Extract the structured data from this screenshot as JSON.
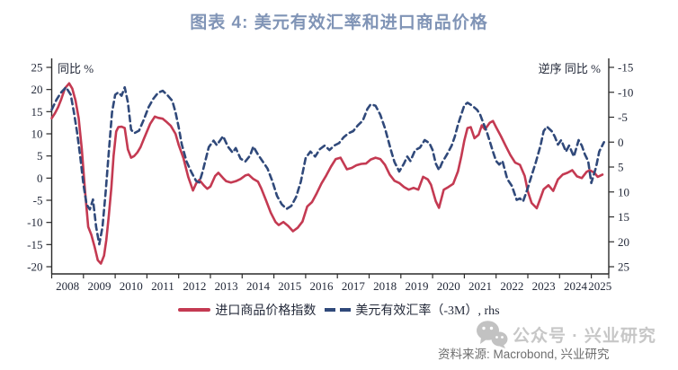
{
  "title": "图表 4: 美元有效汇率和进口商品价格",
  "legend": {
    "item1": "进口商品价格指数",
    "item2": "美元有效汇率（-3M）, rhs"
  },
  "footer": {
    "watermark": "公众号 · 兴业研究",
    "source": "资料来源: Macrobond, 兴业研究"
  },
  "colors": {
    "red_line": "#C43A52",
    "navy_dashed": "#30497A",
    "title": "#8094B6",
    "axis_text": "#232939",
    "axis_line": "#2A2A2A",
    "source_text": "#6E6E6E",
    "watermark": "#C7C7C7"
  },
  "chart_data": {
    "type": "line",
    "title": "图表 4: 美元有效汇率和进口商品价格",
    "x_axis": {
      "years": [
        2008,
        2009,
        2010,
        2011,
        2012,
        2013,
        2014,
        2015,
        2016,
        2017,
        2018,
        2019,
        2020,
        2021,
        2022,
        2023,
        2024,
        2025
      ],
      "range": [
        2008,
        2025.58
      ]
    },
    "left_axis": {
      "label": "同比 %",
      "ticks": [
        25,
        20,
        15,
        10,
        5,
        0,
        -5,
        -10,
        -15,
        -20
      ],
      "range": [
        -20,
        25
      ]
    },
    "right_axis": {
      "label": "逆序 同比 %",
      "ticks": [
        -15,
        -10,
        -5,
        0,
        5,
        10,
        15,
        20,
        25
      ],
      "range": [
        -15,
        25
      ],
      "inverted": true
    },
    "grid": false,
    "legend_position": "bottom",
    "series": [
      {
        "name": "进口商品价格指数",
        "axis": "left",
        "style": "solid",
        "color": "#C43A52",
        "points": [
          [
            2008.0,
            13.5
          ],
          [
            2008.1,
            14.6
          ],
          [
            2008.2,
            16
          ],
          [
            2008.3,
            17.8
          ],
          [
            2008.42,
            20.3
          ],
          [
            2008.55,
            21.4
          ],
          [
            2008.65,
            20.2
          ],
          [
            2008.75,
            17.5
          ],
          [
            2008.85,
            13.5
          ],
          [
            2008.95,
            6.5
          ],
          [
            2009.05,
            -3
          ],
          [
            2009.15,
            -11
          ],
          [
            2009.25,
            -12.8
          ],
          [
            2009.35,
            -15.5
          ],
          [
            2009.45,
            -18.5
          ],
          [
            2009.55,
            -19.3
          ],
          [
            2009.65,
            -17.5
          ],
          [
            2009.72,
            -14
          ],
          [
            2009.8,
            -8.5
          ],
          [
            2009.88,
            -2
          ],
          [
            2009.95,
            5
          ],
          [
            2010.03,
            10.5
          ],
          [
            2010.1,
            11.5
          ],
          [
            2010.2,
            11.6
          ],
          [
            2010.3,
            11.3
          ],
          [
            2010.4,
            6.5
          ],
          [
            2010.5,
            4.6
          ],
          [
            2010.6,
            5
          ],
          [
            2010.7,
            5.8
          ],
          [
            2010.8,
            7
          ],
          [
            2010.9,
            8.8
          ],
          [
            2011.0,
            10.5
          ],
          [
            2011.1,
            12.2
          ],
          [
            2011.25,
            13.9
          ],
          [
            2011.35,
            13.6
          ],
          [
            2011.5,
            13.4
          ],
          [
            2011.6,
            12.8
          ],
          [
            2011.75,
            11.8
          ],
          [
            2011.9,
            10
          ],
          [
            2012.0,
            7.5
          ],
          [
            2012.15,
            4.5
          ],
          [
            2012.3,
            0.3
          ],
          [
            2012.45,
            -2.8
          ],
          [
            2012.55,
            -1.2
          ],
          [
            2012.65,
            -0.4
          ],
          [
            2012.8,
            -1.7
          ],
          [
            2012.9,
            -2.4
          ],
          [
            2013.0,
            -1.9
          ],
          [
            2013.15,
            0.5
          ],
          [
            2013.25,
            1.2
          ],
          [
            2013.4,
            0
          ],
          [
            2013.5,
            -0.7
          ],
          [
            2013.65,
            -1
          ],
          [
            2013.8,
            -0.7
          ],
          [
            2013.95,
            -0.2
          ],
          [
            2014.1,
            0.6
          ],
          [
            2014.2,
            0.8
          ],
          [
            2014.35,
            -0.2
          ],
          [
            2014.5,
            -0.8
          ],
          [
            2014.6,
            -2.3
          ],
          [
            2014.75,
            -5
          ],
          [
            2014.9,
            -7.8
          ],
          [
            2015.05,
            -9.9
          ],
          [
            2015.15,
            -10.6
          ],
          [
            2015.3,
            -9.9
          ],
          [
            2015.45,
            -10.8
          ],
          [
            2015.6,
            -12
          ],
          [
            2015.75,
            -11.2
          ],
          [
            2015.9,
            -9.8
          ],
          [
            2016.05,
            -6.4
          ],
          [
            2016.2,
            -5.4
          ],
          [
            2016.35,
            -3.4
          ],
          [
            2016.5,
            -1.2
          ],
          [
            2016.65,
            0.6
          ],
          [
            2016.8,
            2.6
          ],
          [
            2016.95,
            4.3
          ],
          [
            2017.1,
            4.6
          ],
          [
            2017.3,
            2
          ],
          [
            2017.45,
            2.3
          ],
          [
            2017.6,
            2.9
          ],
          [
            2017.75,
            3.2
          ],
          [
            2017.9,
            3.3
          ],
          [
            2018.05,
            4.2
          ],
          [
            2018.2,
            4.6
          ],
          [
            2018.35,
            4.3
          ],
          [
            2018.5,
            3
          ],
          [
            2018.65,
            0.8
          ],
          [
            2018.8,
            -0.6
          ],
          [
            2018.95,
            -1.1
          ],
          [
            2019.1,
            -2
          ],
          [
            2019.25,
            -2.6
          ],
          [
            2019.4,
            -2.2
          ],
          [
            2019.55,
            -2.6
          ],
          [
            2019.7,
            0.3
          ],
          [
            2019.85,
            -0.3
          ],
          [
            2019.95,
            -1.5
          ],
          [
            2020.1,
            -5.2
          ],
          [
            2020.2,
            -6.7
          ],
          [
            2020.35,
            -2.6
          ],
          [
            2020.5,
            -2
          ],
          [
            2020.65,
            -1.3
          ],
          [
            2020.8,
            1.5
          ],
          [
            2020.9,
            4.8
          ],
          [
            2021.0,
            8.5
          ],
          [
            2021.1,
            11.3
          ],
          [
            2021.2,
            11.5
          ],
          [
            2021.32,
            9
          ],
          [
            2021.45,
            9.8
          ],
          [
            2021.55,
            11.9
          ],
          [
            2021.65,
            11
          ],
          [
            2021.8,
            12.5
          ],
          [
            2021.9,
            12.9
          ],
          [
            2022.0,
            11.5
          ],
          [
            2022.15,
            9.5
          ],
          [
            2022.3,
            7.3
          ],
          [
            2022.45,
            5.2
          ],
          [
            2022.6,
            3.5
          ],
          [
            2022.75,
            3
          ],
          [
            2022.9,
            0.5
          ],
          [
            2023.0,
            -3
          ],
          [
            2023.12,
            -5.6
          ],
          [
            2023.28,
            -6.8
          ],
          [
            2023.4,
            -4.5
          ],
          [
            2023.5,
            -2.5
          ],
          [
            2023.65,
            -1.6
          ],
          [
            2023.8,
            -2.9
          ],
          [
            2023.95,
            -0.3
          ],
          [
            2024.1,
            0.8
          ],
          [
            2024.25,
            1.2
          ],
          [
            2024.4,
            1.8
          ],
          [
            2024.55,
            0.4
          ],
          [
            2024.7,
            0
          ],
          [
            2024.85,
            1.4
          ],
          [
            2024.95,
            1.8
          ],
          [
            2025.1,
            1.2
          ],
          [
            2025.2,
            0.3
          ],
          [
            2025.35,
            0.8
          ]
        ]
      },
      {
        "name": "美元有效汇率（-3M）, rhs",
        "axis": "right",
        "style": "dashed",
        "color": "#30497A",
        "points": [
          [
            2008.0,
            -6.5
          ],
          [
            2008.15,
            -8.5
          ],
          [
            2008.3,
            -10
          ],
          [
            2008.45,
            -11
          ],
          [
            2008.6,
            -9.5
          ],
          [
            2008.7,
            -6
          ],
          [
            2008.8,
            -2
          ],
          [
            2008.9,
            3
          ],
          [
            2009.0,
            8.5
          ],
          [
            2009.1,
            12.5
          ],
          [
            2009.2,
            13.5
          ],
          [
            2009.3,
            11.5
          ],
          [
            2009.4,
            17
          ],
          [
            2009.5,
            20.5
          ],
          [
            2009.6,
            17
          ],
          [
            2009.7,
            10
          ],
          [
            2009.8,
            2
          ],
          [
            2009.9,
            -6
          ],
          [
            2010.0,
            -9.5
          ],
          [
            2010.1,
            -10
          ],
          [
            2010.2,
            -9.3
          ],
          [
            2010.3,
            -11
          ],
          [
            2010.4,
            -8
          ],
          [
            2010.5,
            -2.5
          ],
          [
            2010.6,
            -1.8
          ],
          [
            2010.75,
            -2.3
          ],
          [
            2010.9,
            -4.5
          ],
          [
            2011.05,
            -7
          ],
          [
            2011.2,
            -8.7
          ],
          [
            2011.35,
            -9.9
          ],
          [
            2011.5,
            -10.3
          ],
          [
            2011.65,
            -9.4
          ],
          [
            2011.8,
            -8.3
          ],
          [
            2011.9,
            -6
          ],
          [
            2012.0,
            -3
          ],
          [
            2012.1,
            0.5
          ],
          [
            2012.25,
            3.9
          ],
          [
            2012.4,
            6
          ],
          [
            2012.55,
            7.8
          ],
          [
            2012.65,
            8.1
          ],
          [
            2012.75,
            6
          ],
          [
            2012.85,
            3.5
          ],
          [
            2012.95,
            1
          ],
          [
            2013.1,
            -0.3
          ],
          [
            2013.2,
            0.6
          ],
          [
            2013.3,
            -0.3
          ],
          [
            2013.4,
            -1.2
          ],
          [
            2013.55,
            0.9
          ],
          [
            2013.7,
            2.1
          ],
          [
            2013.8,
            1.2
          ],
          [
            2013.95,
            3.3
          ],
          [
            2014.1,
            3.9
          ],
          [
            2014.25,
            2.7
          ],
          [
            2014.35,
            0.9
          ],
          [
            2014.5,
            2.5
          ],
          [
            2014.65,
            3.9
          ],
          [
            2014.8,
            5.3
          ],
          [
            2014.95,
            7.8
          ],
          [
            2015.1,
            10.8
          ],
          [
            2015.25,
            12.5
          ],
          [
            2015.4,
            13.4
          ],
          [
            2015.55,
            12.8
          ],
          [
            2015.7,
            11
          ],
          [
            2015.85,
            7.9
          ],
          [
            2016.0,
            3.2
          ],
          [
            2016.15,
            1.9
          ],
          [
            2016.3,
            2.9
          ],
          [
            2016.45,
            1.4
          ],
          [
            2016.6,
            0.7
          ],
          [
            2016.75,
            1.6
          ],
          [
            2016.9,
            0.7
          ],
          [
            2017.05,
            0.2
          ],
          [
            2017.2,
            -1
          ],
          [
            2017.35,
            -1.8
          ],
          [
            2017.5,
            -2.2
          ],
          [
            2017.65,
            -3.4
          ],
          [
            2017.8,
            -4.3
          ],
          [
            2017.95,
            -6.7
          ],
          [
            2018.05,
            -7.6
          ],
          [
            2018.2,
            -7.3
          ],
          [
            2018.35,
            -5.5
          ],
          [
            2018.5,
            -2.8
          ],
          [
            2018.6,
            -0.4
          ],
          [
            2018.7,
            1.9
          ],
          [
            2018.8,
            4
          ],
          [
            2018.95,
            5.9
          ],
          [
            2019.1,
            4.3
          ],
          [
            2019.2,
            2.9
          ],
          [
            2019.3,
            3.8
          ],
          [
            2019.45,
            1.6
          ],
          [
            2019.6,
            1.1
          ],
          [
            2019.75,
            -0.4
          ],
          [
            2019.9,
            0.2
          ],
          [
            2020.0,
            1.6
          ],
          [
            2020.1,
            4.3
          ],
          [
            2020.2,
            5.6
          ],
          [
            2020.3,
            4.1
          ],
          [
            2020.45,
            2.5
          ],
          [
            2020.6,
            0.7
          ],
          [
            2020.7,
            -1.1
          ],
          [
            2020.8,
            -3.5
          ],
          [
            2020.9,
            -5.5
          ],
          [
            2021.0,
            -7.4
          ],
          [
            2021.1,
            -7.9
          ],
          [
            2021.25,
            -7.3
          ],
          [
            2021.4,
            -6.5
          ],
          [
            2021.5,
            -5.5
          ],
          [
            2021.6,
            -3.8
          ],
          [
            2021.7,
            -2.2
          ],
          [
            2021.8,
            -0.2
          ],
          [
            2021.9,
            1.9
          ],
          [
            2022.0,
            3.8
          ],
          [
            2022.1,
            4.5
          ],
          [
            2022.2,
            3.8
          ],
          [
            2022.35,
            7.4
          ],
          [
            2022.5,
            8.8
          ],
          [
            2022.65,
            11.6
          ],
          [
            2022.75,
            11.3
          ],
          [
            2022.85,
            11.9
          ],
          [
            2023.0,
            9.2
          ],
          [
            2023.1,
            7.1
          ],
          [
            2023.25,
            4.1
          ],
          [
            2023.4,
            0.7
          ],
          [
            2023.5,
            -2.2
          ],
          [
            2023.6,
            -3.1
          ],
          [
            2023.75,
            -2.2
          ],
          [
            2023.85,
            -1.1
          ],
          [
            2023.95,
            0.5
          ],
          [
            2024.05,
            -0.4
          ],
          [
            2024.2,
            1.9
          ],
          [
            2024.3,
            0.7
          ],
          [
            2024.45,
            2.9
          ],
          [
            2024.6,
            -0.4
          ],
          [
            2024.7,
            0.7
          ],
          [
            2024.8,
            2.5
          ],
          [
            2024.9,
            3.8
          ],
          [
            2025.0,
            8.2
          ],
          [
            2025.15,
            5
          ],
          [
            2025.25,
            1.9
          ],
          [
            2025.4,
            0
          ]
        ]
      }
    ]
  }
}
